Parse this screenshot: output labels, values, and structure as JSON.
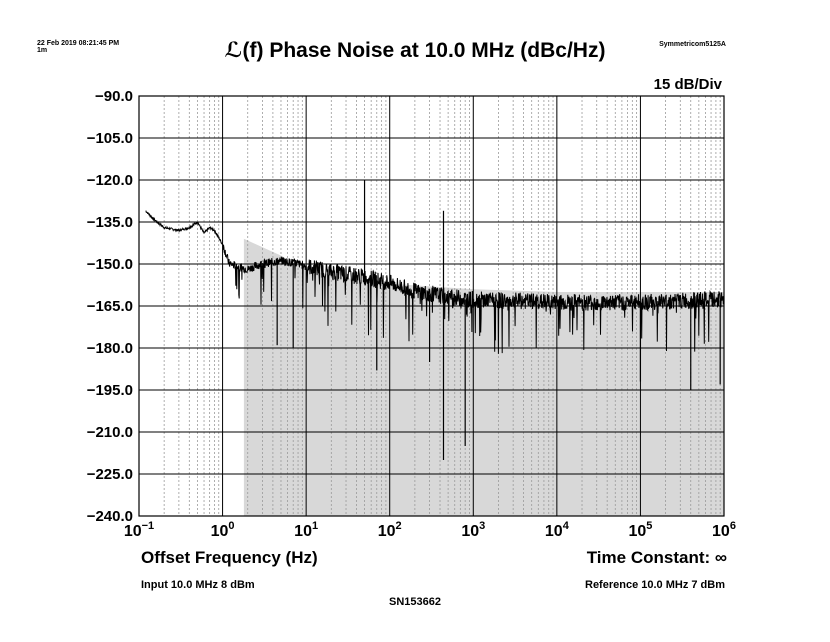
{
  "header": {
    "timestamp_line1": "22 Feb 2019 08:21:45 PM",
    "timestamp_line2": "1m",
    "instrument": "Symmetricom5125A",
    "scale": "15 dB/Div"
  },
  "footer": {
    "time_constant": "Time Constant: ∞",
    "input": "Input 10.0 MHz 8 dBm",
    "reference": "Reference 10.0 MHz 7 dBm",
    "serial": "SN153662"
  },
  "colors": {
    "grid_major": "#000000",
    "grid_minor": "#9a9a9a",
    "trace": "#000000",
    "fill": "#d8d8d8"
  },
  "chart_data": {
    "type": "line",
    "title": "ℒ(f) Phase Noise at 10.0 MHz (dBc/Hz)",
    "xlabel": "Offset Frequency (Hz)",
    "ylabel": "",
    "xscale": "log",
    "xlim": [
      0.1,
      1000000
    ],
    "ylim": [
      -240,
      -90
    ],
    "grid": true,
    "ytick_labels": [
      "-90.0",
      "-105.0",
      "-120.0",
      "-135.0",
      "-150.0",
      "-165.0",
      "-180.0",
      "-195.0",
      "-210.0",
      "-225.0",
      "-240.0"
    ],
    "xtick_labels": [
      {
        "base": "10",
        "exp": "−1"
      },
      {
        "base": "10",
        "exp": "0"
      },
      {
        "base": "10",
        "exp": "1"
      },
      {
        "base": "10",
        "exp": "2"
      },
      {
        "base": "10",
        "exp": "3"
      },
      {
        "base": "10",
        "exp": "4"
      },
      {
        "base": "10",
        "exp": "5"
      },
      {
        "base": "10",
        "exp": "6"
      }
    ],
    "envelope": {
      "x": [
        1.8,
        5,
        10,
        30,
        100,
        300,
        1000,
        10000,
        100000,
        1000000
      ],
      "y": [
        -141,
        -147,
        -152,
        -155,
        -157,
        -158,
        -159,
        -160,
        -160,
        -160
      ]
    },
    "series": [
      {
        "x": [
          0.12,
          0.15,
          0.2,
          0.3,
          0.4,
          0.5,
          0.6,
          0.7,
          0.8,
          1.0,
          1.2,
          1.5,
          2,
          3,
          5,
          8,
          10,
          20,
          50,
          100,
          200,
          500,
          1000,
          10000,
          100000,
          1000000
        ],
        "y": [
          -131,
          -134,
          -137,
          -138,
          -137,
          -135,
          -139,
          -137,
          -138,
          -143,
          -150,
          -151,
          -152,
          -150,
          -149,
          -150,
          -151,
          -153,
          -155,
          -157,
          -160,
          -162,
          -163,
          -164,
          -164,
          -163
        ]
      }
    ],
    "spurs": [
      {
        "x": 4.5,
        "y": -179
      },
      {
        "x": 7,
        "y": -180
      },
      {
        "x": 50,
        "y": -120
      },
      {
        "x": 70,
        "y": -188
      },
      {
        "x": 300,
        "y": -185
      },
      {
        "x": 440,
        "y": -131
      },
      {
        "x": 440,
        "y": -220
      },
      {
        "x": 800,
        "y": -215
      },
      {
        "x": 100000,
        "y": -192
      },
      {
        "x": 400000,
        "y": -195
      },
      {
        "x": 900000,
        "y": -193
      }
    ]
  }
}
